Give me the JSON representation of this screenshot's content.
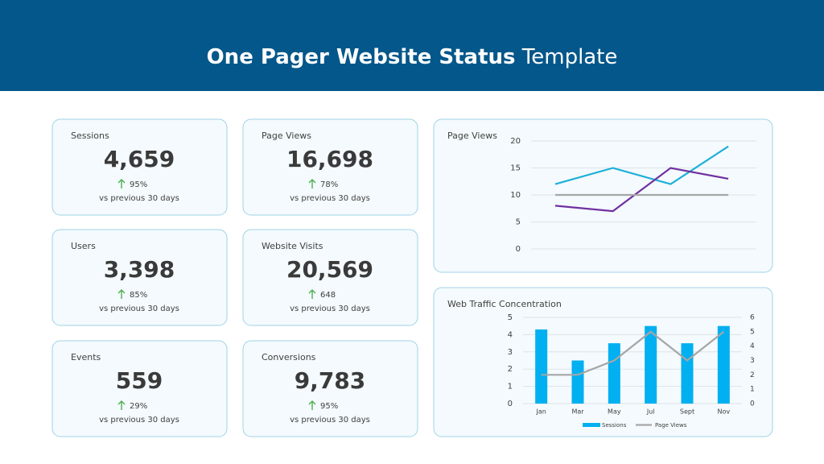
{
  "header": {
    "title_strong": "One Pager Website Status",
    "title_rest": "Template"
  },
  "cards": [
    {
      "label": "Sessions",
      "value": "4,659",
      "change": "95%",
      "note": "vs previous 30 days"
    },
    {
      "label": "Page Views",
      "value": "16,698",
      "change": "78%",
      "note": "vs previous 30 days"
    },
    {
      "label": "Users",
      "value": "3,398",
      "change": "85%",
      "note": "vs previous 30 days"
    },
    {
      "label": "Website Visits",
      "value": "20,569",
      "change": "648",
      "note": "vs previous 30 days"
    },
    {
      "label": "Events",
      "value": "559",
      "change": "29%",
      "note": "vs previous 30 days"
    },
    {
      "label": "Conversions",
      "value": "9,783",
      "change": "95%",
      "note": "vs previous 30 days"
    }
  ],
  "chart_data": [
    {
      "type": "line",
      "title": "Page Views",
      "categories": [
        null,
        null,
        null,
        null
      ],
      "series": [
        {
          "color": "#1fb0d8",
          "values": [
            12,
            15,
            12,
            19
          ]
        },
        {
          "color": "#7030a0",
          "values": [
            8,
            7,
            15,
            13
          ]
        },
        {
          "color": "#a6a6a6",
          "values": [
            10,
            10,
            10,
            10
          ]
        }
      ],
      "ylim": [
        0,
        20
      ],
      "yticks": [
        0,
        5,
        10,
        15,
        20
      ],
      "grid": true
    },
    {
      "type": "bar",
      "title": "Web Traffic Concentration",
      "categories": [
        "Jan",
        "Mar",
        "May",
        "Jul",
        "Sept",
        "Nov"
      ],
      "series": [
        {
          "name": "Sessions",
          "type": "bar",
          "color": "#00b0f0",
          "values": [
            4.3,
            2.5,
            3.5,
            4.5,
            3.5,
            4.5
          ]
        },
        {
          "name": "Page Views",
          "type": "line",
          "axis": "y2",
          "color": "#a6a6a6",
          "values": [
            2,
            2,
            3,
            5,
            3,
            5
          ]
        }
      ],
      "ylim": [
        0,
        5
      ],
      "yticks": [
        0,
        1,
        2,
        3,
        4,
        5
      ],
      "y2lim": [
        0,
        6
      ],
      "y2ticks": [
        0,
        1,
        2,
        3,
        4,
        5,
        6
      ],
      "grid": true,
      "legend": "bottom"
    }
  ]
}
